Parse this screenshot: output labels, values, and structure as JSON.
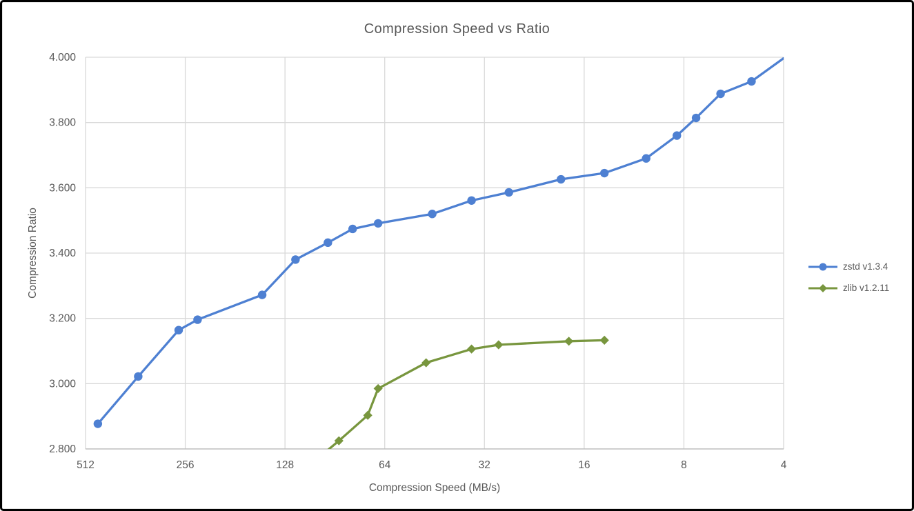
{
  "chart_data": {
    "type": "line",
    "title": "Compression Speed vs Ratio",
    "xlabel": "Compression Speed (MB/s)",
    "ylabel": "Compression Ratio",
    "x_scale": "log2-reversed",
    "xlim": [
      512,
      4
    ],
    "ylim": [
      2.8,
      4.0
    ],
    "grid": true,
    "legend_position": "right",
    "colors": {
      "grid": "#D9D9D9",
      "axis_line": "#BFBFBF",
      "text": "#595959"
    },
    "x_ticks": [
      {
        "value": 512,
        "label": "512"
      },
      {
        "value": 256,
        "label": "256"
      },
      {
        "value": 128,
        "label": "128"
      },
      {
        "value": 64,
        "label": "64"
      },
      {
        "value": 32,
        "label": "32"
      },
      {
        "value": 16,
        "label": "16"
      },
      {
        "value": 8,
        "label": "8"
      },
      {
        "value": 4,
        "label": "4"
      }
    ],
    "y_ticks": [
      {
        "value": 2.8,
        "label": "2.800"
      },
      {
        "value": 3.0,
        "label": "3.000"
      },
      {
        "value": 3.2,
        "label": "3.200"
      },
      {
        "value": 3.4,
        "label": "3.400"
      },
      {
        "value": 3.6,
        "label": "3.600"
      },
      {
        "value": 3.8,
        "label": "3.800"
      },
      {
        "value": 4.0,
        "label": "4.000"
      }
    ],
    "series": [
      {
        "id": "zstd",
        "name": "zstd v1.3.4",
        "color": "#4E80D2",
        "marker": "circle",
        "points": [
          [
            470,
            2.877
          ],
          [
            355,
            3.022
          ],
          [
            268,
            3.164
          ],
          [
            235,
            3.196
          ],
          [
            150,
            3.272
          ],
          [
            119,
            3.38
          ],
          [
            95,
            3.432
          ],
          [
            80,
            3.474
          ],
          [
            67,
            3.491
          ],
          [
            46,
            3.52
          ],
          [
            35,
            3.561
          ],
          [
            27,
            3.586
          ],
          [
            18.8,
            3.626
          ],
          [
            13.9,
            3.645
          ],
          [
            10.4,
            3.69
          ],
          [
            8.4,
            3.76
          ],
          [
            7.35,
            3.814
          ],
          [
            6.2,
            3.888
          ],
          [
            5.0,
            3.926
          ],
          [
            3.9,
            4.005
          ]
        ]
      },
      {
        "id": "zlib",
        "name": "zlib v1.2.11",
        "color": "#78963E",
        "marker": "diamond",
        "points": [
          [
            110,
            2.743
          ],
          [
            88,
            2.825
          ],
          [
            72,
            2.903
          ],
          [
            67,
            2.985
          ],
          [
            48,
            3.064
          ],
          [
            35,
            3.106
          ],
          [
            29,
            3.119
          ],
          [
            17.8,
            3.13
          ],
          [
            13.9,
            3.133
          ]
        ]
      }
    ]
  }
}
